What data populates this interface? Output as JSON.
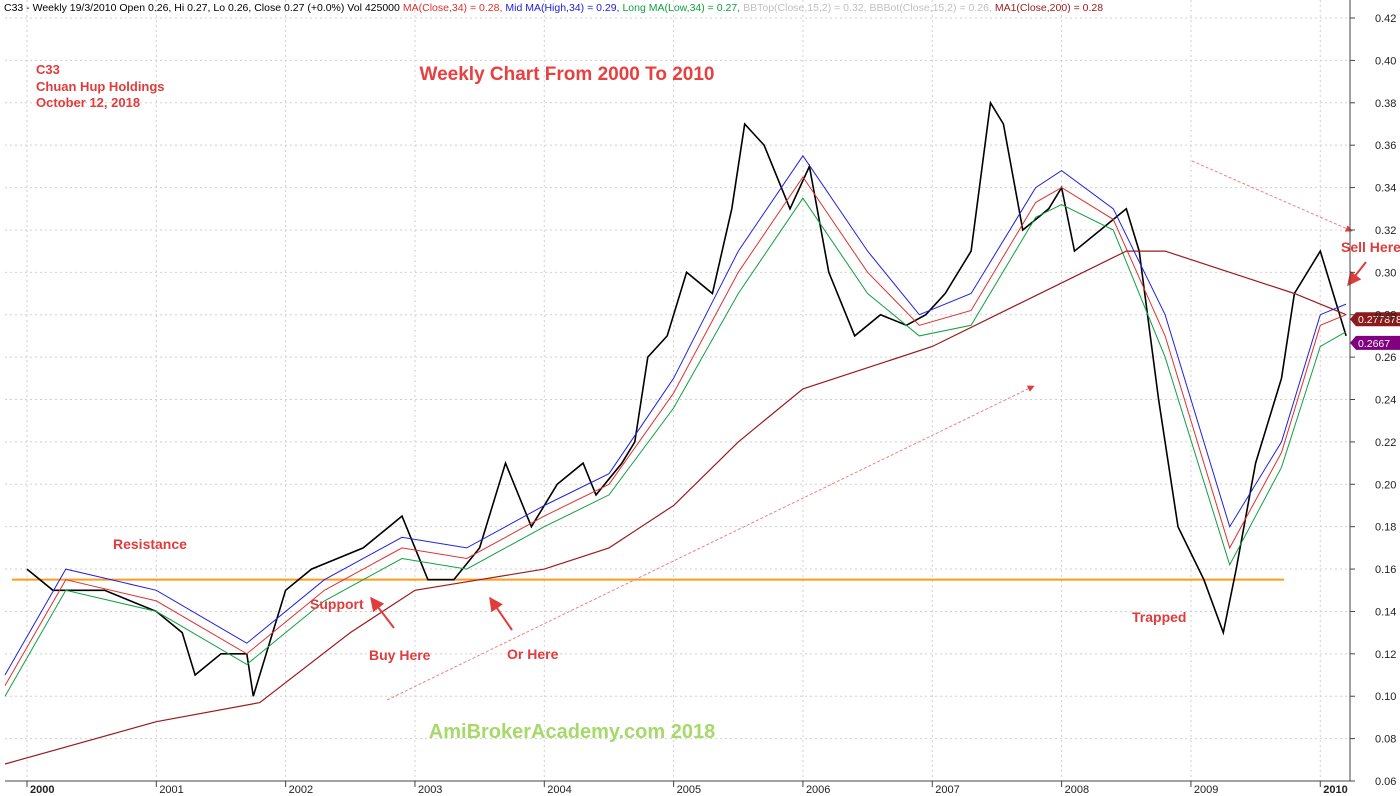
{
  "chart_data": {
    "type": "line",
    "title": "Weekly Chart From 2000 To 2010",
    "watermark": "AmiBrokerAcademy.com  2018",
    "info": [
      "C33",
      "Chuan Hup Holdings",
      "October 12, 2018"
    ],
    "header": [
      {
        "text": "C33 - Weekly 19/3/2010 Open 0.26, Hi 0.27, Lo 0.26, Close 0.27 (+0.0%) Vol 425000",
        "color": "#000000"
      },
      {
        "text": "MA(Close,34) = 0.28,",
        "color": "#e03030"
      },
      {
        "text": "Mid MA(High,34) = 0.29,",
        "color": "#2020e0"
      },
      {
        "text": "Long MA(Low,34) = 0.27,",
        "color": "#10a040"
      },
      {
        "text": "BBTop(Close,15,2) = 0.32,",
        "color": "#c0c0c0"
      },
      {
        "text": "BBBot(Close,15,2) = 0.26,",
        "color": "#c0c0c0"
      },
      {
        "text": "MA1(Close,200) = 0.28",
        "color": "#9b1b1b"
      }
    ],
    "annotations": [
      "Resistance",
      "Support",
      "Buy Here",
      "Or Here",
      "Trapped",
      "Sell Here"
    ],
    "xlim": [
      1999.83,
      2010.23
    ],
    "ylim": [
      0.06,
      0.4285
    ],
    "xticks": [
      2000,
      2001,
      2002,
      2003,
      2004,
      2005,
      2006,
      2007,
      2008,
      2009,
      2010
    ],
    "yticks": [
      0.06,
      0.08,
      {
        "value": 0.1,
        "label": "0.10"
      },
      0.12,
      0.14,
      0.16,
      0.18,
      {
        "value": 0.2,
        "label": "0.20"
      },
      0.22,
      0.24,
      0.26,
      0.28,
      {
        "value": 0.3,
        "label": "0.30"
      },
      0.32,
      0.34,
      0.36,
      0.38,
      {
        "value": 0.4,
        "label": "0.40"
      },
      0.42
    ],
    "grid": true,
    "support_line": {
      "value": 0.155,
      "color": "#ff9a1a"
    },
    "price_tags": [
      {
        "value": 0.277878,
        "color": "#8b1a1a"
      },
      {
        "value": 0.2667,
        "color": "#800080"
      }
    ],
    "series": [
      {
        "name": "Close",
        "color": "#000000",
        "width": 1.6,
        "x": [
          2000.0,
          2000.2,
          2000.4,
          2000.6,
          2000.8,
          2001.0,
          2001.2,
          2001.3,
          2001.5,
          2001.7,
          2001.75,
          2001.85,
          2002.0,
          2002.2,
          2002.4,
          2002.6,
          2002.8,
          2002.9,
          2003.0,
          2003.1,
          2003.3,
          2003.5,
          2003.7,
          2003.9,
          2004.1,
          2004.3,
          2004.4,
          2004.6,
          2004.7,
          2004.8,
          2004.95,
          2005.1,
          2005.3,
          2005.45,
          2005.55,
          2005.7,
          2005.9,
          2006.05,
          2006.2,
          2006.4,
          2006.6,
          2006.8,
          2006.95,
          2007.1,
          2007.3,
          2007.45,
          2007.55,
          2007.7,
          2007.9,
          2008.0,
          2008.1,
          2008.3,
          2008.5,
          2008.6,
          2008.75,
          2008.9,
          2009.1,
          2009.25,
          2009.35,
          2009.5,
          2009.7,
          2009.8,
          2010.0,
          2010.1,
          2010.2
        ],
        "values": [
          0.16,
          0.15,
          0.15,
          0.15,
          0.145,
          0.14,
          0.13,
          0.11,
          0.12,
          0.12,
          0.1,
          0.12,
          0.15,
          0.16,
          0.165,
          0.17,
          0.18,
          0.185,
          0.17,
          0.155,
          0.155,
          0.17,
          0.21,
          0.18,
          0.2,
          0.21,
          0.195,
          0.21,
          0.22,
          0.26,
          0.27,
          0.3,
          0.29,
          0.33,
          0.37,
          0.36,
          0.33,
          0.35,
          0.3,
          0.27,
          0.28,
          0.275,
          0.28,
          0.29,
          0.31,
          0.38,
          0.37,
          0.32,
          0.33,
          0.34,
          0.31,
          0.32,
          0.33,
          0.31,
          0.24,
          0.18,
          0.155,
          0.13,
          0.16,
          0.21,
          0.25,
          0.29,
          0.31,
          0.29,
          0.27
        ]
      },
      {
        "name": "MA(Close,34)",
        "color": "#e03030",
        "width": 1,
        "x": [
          1999.83,
          2000.3,
          2001.0,
          2001.7,
          2002.3,
          2002.9,
          2003.4,
          2004.0,
          2004.5,
          2005.0,
          2005.5,
          2006.0,
          2006.5,
          2006.9,
          2007.3,
          2007.8,
          2008.0,
          2008.4,
          2008.8,
          2009.3,
          2009.7,
          2010.0,
          2010.2
        ],
        "values": [
          0.105,
          0.155,
          0.145,
          0.12,
          0.15,
          0.17,
          0.165,
          0.185,
          0.2,
          0.243,
          0.3,
          0.345,
          0.3,
          0.275,
          0.282,
          0.333,
          0.34,
          0.325,
          0.27,
          0.17,
          0.215,
          0.275,
          0.28
        ]
      },
      {
        "name": "Mid MA(High,34)",
        "color": "#2020e0",
        "width": 1,
        "x": [
          1999.83,
          2000.3,
          2001.0,
          2001.7,
          2002.3,
          2002.9,
          2003.4,
          2004.0,
          2004.5,
          2005.0,
          2005.5,
          2006.0,
          2006.5,
          2006.9,
          2007.3,
          2007.8,
          2008.0,
          2008.4,
          2008.8,
          2009.3,
          2009.7,
          2010.0,
          2010.2
        ],
        "values": [
          0.11,
          0.16,
          0.15,
          0.125,
          0.155,
          0.175,
          0.17,
          0.19,
          0.205,
          0.25,
          0.31,
          0.355,
          0.31,
          0.28,
          0.29,
          0.34,
          0.348,
          0.33,
          0.28,
          0.18,
          0.22,
          0.28,
          0.285
        ]
      },
      {
        "name": "Long MA(Low,34)",
        "color": "#10a040",
        "width": 1,
        "x": [
          1999.83,
          2000.3,
          2001.0,
          2001.7,
          2002.3,
          2002.9,
          2003.4,
          2004.0,
          2004.5,
          2005.0,
          2005.5,
          2006.0,
          2006.5,
          2006.9,
          2007.3,
          2007.8,
          2008.0,
          2008.4,
          2008.8,
          2009.3,
          2009.7,
          2010.0,
          2010.2
        ],
        "values": [
          0.1,
          0.15,
          0.14,
          0.115,
          0.145,
          0.165,
          0.16,
          0.18,
          0.195,
          0.236,
          0.29,
          0.335,
          0.29,
          0.27,
          0.275,
          0.326,
          0.332,
          0.32,
          0.26,
          0.162,
          0.208,
          0.265,
          0.272
        ]
      },
      {
        "name": "MA1(Close,200)",
        "color": "#9b1b1b",
        "width": 1.2,
        "x": [
          1999.83,
          2001.0,
          2001.8,
          2002.5,
          2003.0,
          2003.5,
          2004.0,
          2004.5,
          2005.0,
          2005.5,
          2006.0,
          2006.5,
          2007.0,
          2007.5,
          2008.0,
          2008.5,
          2008.8,
          2009.3,
          2009.8,
          2010.2
        ],
        "values": [
          0.068,
          0.088,
          0.097,
          0.13,
          0.15,
          0.155,
          0.16,
          0.17,
          0.19,
          0.22,
          0.245,
          0.255,
          0.265,
          0.28,
          0.295,
          0.31,
          0.31,
          0.3,
          0.29,
          0.28
        ]
      }
    ]
  }
}
